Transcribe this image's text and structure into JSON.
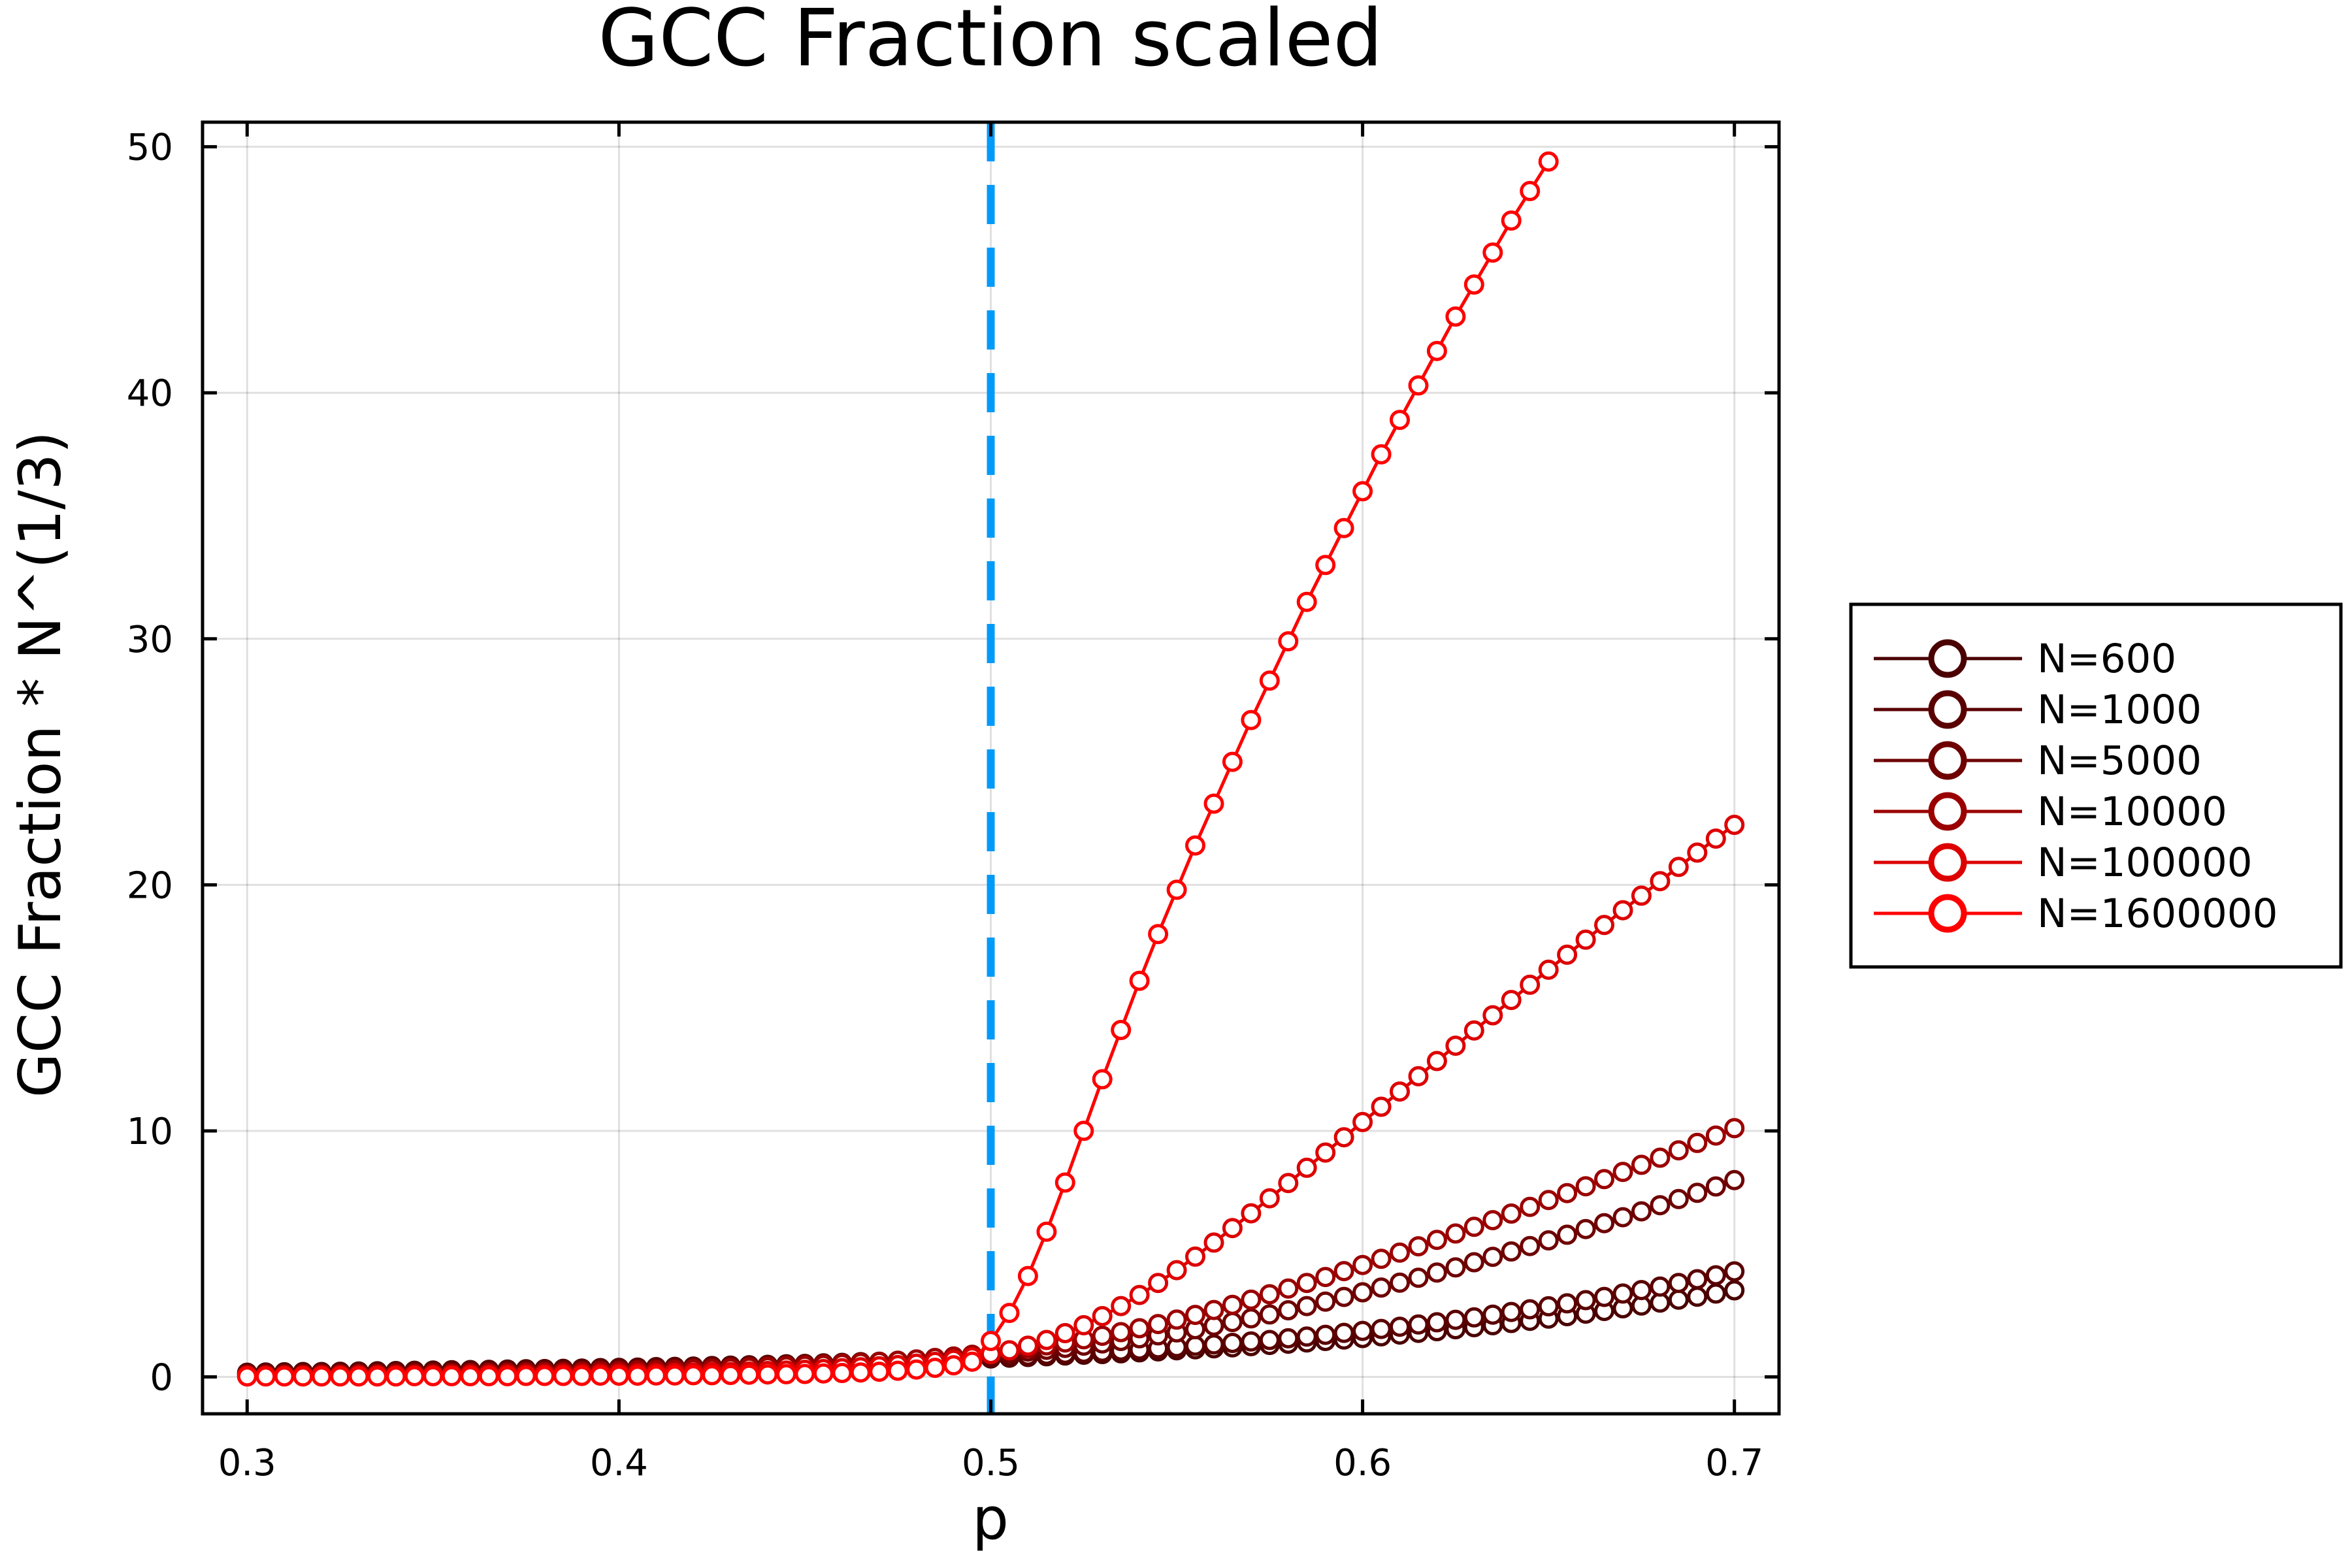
{
  "chart_data": {
    "type": "line",
    "title": "GCC Fraction scaled",
    "xlabel": "p",
    "ylabel": "GCC Fraction * N^(1/3)",
    "xlim": [
      0.288,
      0.712
    ],
    "ylim": [
      -1.5,
      51
    ],
    "xticks": [
      0.3,
      0.4,
      0.5,
      0.6,
      0.7
    ],
    "xtick_labels": [
      "0.3",
      "0.4",
      "0.5",
      "0.6",
      "0.7"
    ],
    "yticks": [
      0,
      10,
      20,
      30,
      40,
      50
    ],
    "ytick_labels": [
      "0",
      "10",
      "20",
      "30",
      "40",
      "50"
    ],
    "grid": true,
    "legend_position": "outer-right",
    "vline": {
      "x": 0.5,
      "color": "#009af9",
      "style": "dashed"
    },
    "series": [
      {
        "name": "N=600",
        "color": "#4a0000",
        "x_start": 0.3,
        "x_step": 0.005,
        "count": 81,
        "values": [
          0.17,
          0.18,
          0.19,
          0.2,
          0.2,
          0.21,
          0.22,
          0.23,
          0.24,
          0.25,
          0.26,
          0.27,
          0.28,
          0.29,
          0.3,
          0.31,
          0.32,
          0.33,
          0.34,
          0.36,
          0.37,
          0.38,
          0.4,
          0.41,
          0.42,
          0.44,
          0.46,
          0.47,
          0.49,
          0.51,
          0.52,
          0.54,
          0.56,
          0.58,
          0.6,
          0.63,
          0.65,
          0.67,
          0.7,
          0.72,
          0.75,
          0.78,
          0.81,
          0.84,
          0.87,
          0.9,
          0.93,
          0.96,
          1.0,
          1.04,
          1.08,
          1.12,
          1.16,
          1.2,
          1.25,
          1.3,
          1.35,
          1.4,
          1.46,
          1.52,
          1.58,
          1.65,
          1.72,
          1.79,
          1.86,
          1.94,
          2.02,
          2.1,
          2.19,
          2.28,
          2.37,
          2.47,
          2.57,
          2.68,
          2.79,
          2.9,
          3.02,
          3.14,
          3.26,
          3.39,
          3.52
        ]
      },
      {
        "name": "N=1000",
        "color": "#5a0000",
        "x_start": 0.3,
        "x_step": 0.005,
        "count": 81,
        "values": [
          0.15,
          0.16,
          0.17,
          0.18,
          0.19,
          0.2,
          0.2,
          0.21,
          0.22,
          0.23,
          0.24,
          0.25,
          0.26,
          0.27,
          0.28,
          0.29,
          0.31,
          0.32,
          0.33,
          0.34,
          0.36,
          0.37,
          0.39,
          0.4,
          0.42,
          0.44,
          0.45,
          0.47,
          0.49,
          0.51,
          0.53,
          0.55,
          0.57,
          0.6,
          0.62,
          0.65,
          0.67,
          0.7,
          0.73,
          0.76,
          0.79,
          0.83,
          0.86,
          0.9,
          0.94,
          0.98,
          1.02,
          1.07,
          1.11,
          1.16,
          1.21,
          1.27,
          1.32,
          1.38,
          1.44,
          1.5,
          1.57,
          1.64,
          1.71,
          1.79,
          1.87,
          1.95,
          2.04,
          2.13,
          2.22,
          2.32,
          2.42,
          2.53,
          2.64,
          2.75,
          2.87,
          2.99,
          3.12,
          3.25,
          3.39,
          3.53,
          3.67,
          3.82,
          3.97,
          4.13,
          4.29
        ]
      },
      {
        "name": "N=5000",
        "color": "#6e0000",
        "x_start": 0.3,
        "x_step": 0.005,
        "count": 81,
        "values": [
          0.1,
          0.1,
          0.11,
          0.11,
          0.12,
          0.13,
          0.13,
          0.14,
          0.15,
          0.15,
          0.16,
          0.17,
          0.18,
          0.19,
          0.2,
          0.21,
          0.22,
          0.23,
          0.24,
          0.26,
          0.27,
          0.29,
          0.3,
          0.32,
          0.34,
          0.36,
          0.38,
          0.4,
          0.43,
          0.45,
          0.48,
          0.51,
          0.54,
          0.57,
          0.61,
          0.65,
          0.69,
          0.74,
          0.79,
          0.84,
          0.9,
          0.96,
          1.03,
          1.1,
          1.18,
          1.27,
          1.36,
          1.46,
          1.57,
          1.69,
          1.81,
          1.94,
          2.08,
          2.23,
          2.38,
          2.54,
          2.71,
          2.88,
          3.06,
          3.25,
          3.44,
          3.63,
          3.83,
          4.03,
          4.24,
          4.45,
          4.66,
          4.88,
          5.1,
          5.32,
          5.55,
          5.78,
          6.01,
          6.25,
          6.49,
          6.73,
          6.98,
          7.23,
          7.48,
          7.74,
          8.0
        ]
      },
      {
        "name": "N=10000",
        "color": "#9b0000",
        "x_start": 0.3,
        "x_step": 0.005,
        "count": 81,
        "values": [
          0.08,
          0.08,
          0.09,
          0.09,
          0.1,
          0.1,
          0.11,
          0.11,
          0.12,
          0.13,
          0.13,
          0.14,
          0.15,
          0.16,
          0.17,
          0.18,
          0.19,
          0.2,
          0.21,
          0.23,
          0.24,
          0.26,
          0.27,
          0.29,
          0.31,
          0.33,
          0.35,
          0.38,
          0.4,
          0.43,
          0.46,
          0.49,
          0.53,
          0.57,
          0.61,
          0.66,
          0.71,
          0.77,
          0.83,
          0.9,
          0.98,
          1.07,
          1.17,
          1.28,
          1.4,
          1.53,
          1.67,
          1.82,
          1.98,
          2.15,
          2.33,
          2.52,
          2.72,
          2.93,
          3.14,
          3.36,
          3.59,
          3.82,
          4.06,
          4.3,
          4.55,
          4.8,
          5.05,
          5.31,
          5.57,
          5.83,
          6.1,
          6.37,
          6.64,
          6.91,
          7.19,
          7.47,
          7.75,
          8.04,
          8.33,
          8.62,
          8.91,
          9.21,
          9.51,
          9.81,
          10.11
        ]
      },
      {
        "name": "N=100000",
        "color": "#dd0000",
        "x_start": 0.3,
        "x_step": 0.005,
        "count": 81,
        "values": [
          0.04,
          0.04,
          0.04,
          0.05,
          0.05,
          0.05,
          0.05,
          0.06,
          0.06,
          0.06,
          0.07,
          0.07,
          0.08,
          0.08,
          0.09,
          0.09,
          0.1,
          0.11,
          0.11,
          0.12,
          0.13,
          0.14,
          0.15,
          0.16,
          0.17,
          0.19,
          0.2,
          0.22,
          0.24,
          0.26,
          0.29,
          0.32,
          0.35,
          0.39,
          0.43,
          0.48,
          0.54,
          0.61,
          0.7,
          0.8,
          0.93,
          1.08,
          1.27,
          1.5,
          1.78,
          2.1,
          2.47,
          2.88,
          3.33,
          3.82,
          4.34,
          4.89,
          5.46,
          6.05,
          6.65,
          7.26,
          7.88,
          8.5,
          9.12,
          9.74,
          10.36,
          10.98,
          11.6,
          12.22,
          12.84,
          13.46,
          14.08,
          14.7,
          15.32,
          15.94,
          16.55,
          17.16,
          17.77,
          18.37,
          18.97,
          19.56,
          20.15,
          20.73,
          21.31,
          21.88,
          22.44
        ]
      },
      {
        "name": "N=1600000",
        "color": "#ff0000",
        "x_start": 0.3,
        "x_step": 0.005,
        "count": 71,
        "values": [
          0.02,
          0.02,
          0.02,
          0.02,
          0.02,
          0.02,
          0.02,
          0.02,
          0.02,
          0.03,
          0.03,
          0.03,
          0.03,
          0.03,
          0.03,
          0.04,
          0.04,
          0.04,
          0.04,
          0.05,
          0.05,
          0.05,
          0.06,
          0.06,
          0.07,
          0.07,
          0.08,
          0.09,
          0.1,
          0.11,
          0.12,
          0.14,
          0.16,
          0.18,
          0.21,
          0.25,
          0.3,
          0.37,
          0.47,
          0.62,
          1.46,
          2.6,
          4.1,
          5.9,
          7.9,
          10.0,
          12.1,
          14.1,
          16.1,
          18.0,
          19.8,
          21.6,
          23.3,
          25.0,
          26.7,
          28.3,
          29.9,
          31.5,
          33.0,
          34.5,
          36.0,
          37.5,
          38.9,
          40.3,
          41.7,
          43.1,
          44.4,
          45.7,
          47.0,
          48.2,
          49.4
        ]
      }
    ]
  }
}
